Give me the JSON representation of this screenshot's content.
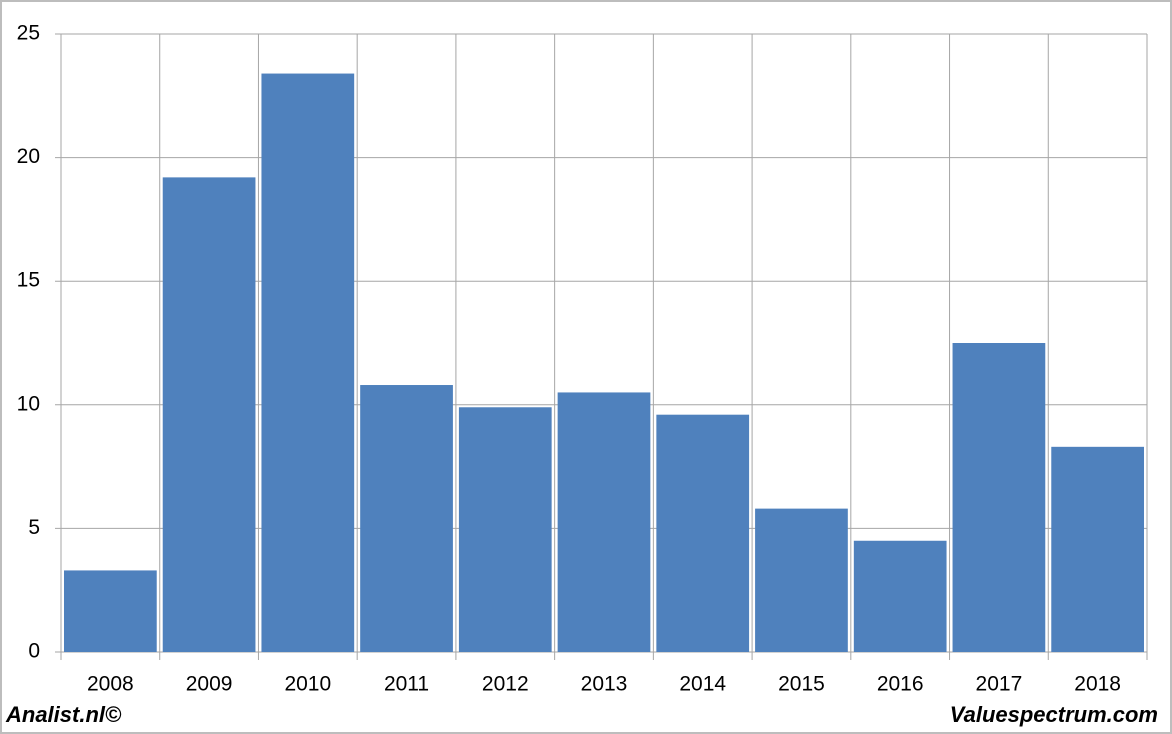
{
  "chart_data": {
    "type": "bar",
    "categories": [
      "2008",
      "2009",
      "2010",
      "2011",
      "2012",
      "2013",
      "2014",
      "2015",
      "2016",
      "2017",
      "2018"
    ],
    "values": [
      3.3,
      19.2,
      23.4,
      10.8,
      9.9,
      10.5,
      9.6,
      5.8,
      4.5,
      12.5,
      8.3
    ],
    "color": "#4f81bd",
    "ylim": [
      0,
      25
    ],
    "yticks": [
      0,
      5,
      10,
      15,
      20,
      25
    ],
    "grid": true,
    "annotations": [
      "Analist.nl©",
      "Valuespectrum.com"
    ]
  }
}
